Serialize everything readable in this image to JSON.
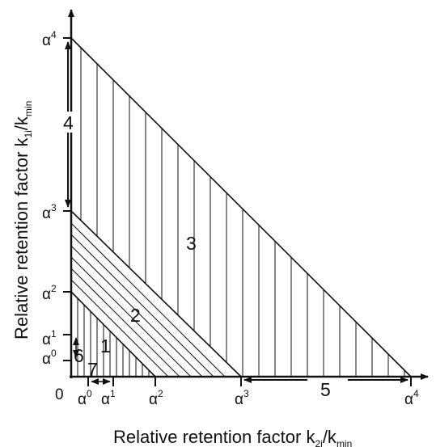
{
  "origin_label": "0",
  "x_axis": {
    "label_main": "Relative retention factor k",
    "label_sub1": "2i",
    "label_mid": "/k",
    "label_sub2": "min",
    "ticks": [
      {
        "base": "α",
        "exp": "0"
      },
      {
        "base": "α",
        "exp": "1"
      },
      {
        "base": "α",
        "exp": "2"
      },
      {
        "base": "α",
        "exp": "3"
      },
      {
        "base": "α",
        "exp": "4"
      }
    ]
  },
  "y_axis": {
    "label_main": "Relative retention factor k",
    "label_sub1": "1i",
    "label_mid": "/k",
    "label_sub2": "min",
    "ticks": [
      {
        "base": "α",
        "exp": "0"
      },
      {
        "base": "α",
        "exp": "1"
      },
      {
        "base": "α",
        "exp": "2"
      },
      {
        "base": "α",
        "exp": "3"
      },
      {
        "base": "α",
        "exp": "4"
      }
    ]
  },
  "regions": [
    "1",
    "2",
    "3",
    "4",
    "5",
    "6",
    "7"
  ],
  "colors": {
    "ink": "#111111",
    "background": "#ffffff"
  }
}
